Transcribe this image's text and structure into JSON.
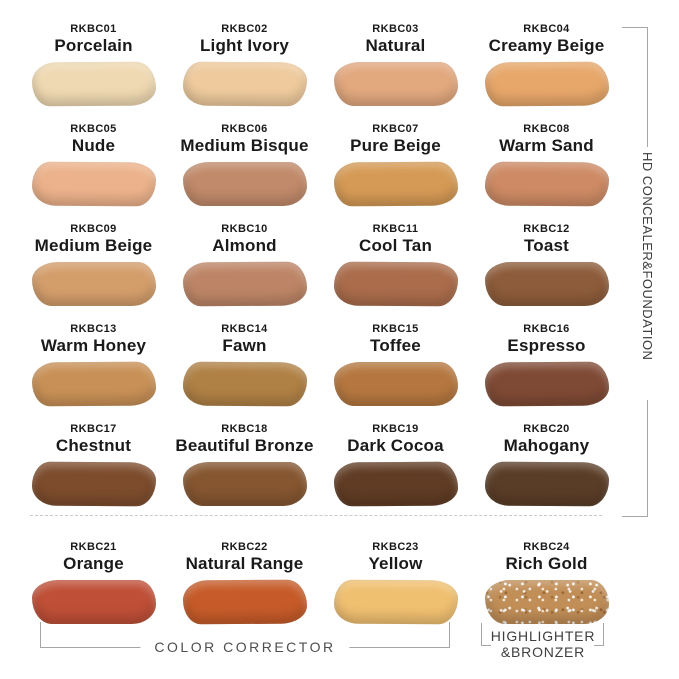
{
  "shades": [
    {
      "code": "RKBC01",
      "name": "Porcelain",
      "color": "#efd9b2"
    },
    {
      "code": "RKBC02",
      "name": "Light Ivory",
      "color": "#eeca9d"
    },
    {
      "code": "RKBC03",
      "name": "Natural",
      "color": "#e2a87e"
    },
    {
      "code": "RKBC04",
      "name": "Creamy Beige",
      "color": "#e7a76a"
    },
    {
      "code": "RKBC05",
      "name": "Nude",
      "color": "#ecb28b"
    },
    {
      "code": "RKBC06",
      "name": "Medium Bisque",
      "color": "#c18a6a"
    },
    {
      "code": "RKBC07",
      "name": "Pure Beige",
      "color": "#d59a55"
    },
    {
      "code": "RKBC08",
      "name": "Warm Sand",
      "color": "#cd8a64"
    },
    {
      "code": "RKBC09",
      "name": "Medium Beige",
      "color": "#d49e6b"
    },
    {
      "code": "RKBC10",
      "name": "Almond",
      "color": "#bd8566"
    },
    {
      "code": "RKBC11",
      "name": "Cool Tan",
      "color": "#aa6c4b"
    },
    {
      "code": "RKBC12",
      "name": "Toast",
      "color": "#8d5c3a"
    },
    {
      "code": "RKBC13",
      "name": "Warm Honey",
      "color": "#c89056"
    },
    {
      "code": "RKBC14",
      "name": "Fawn",
      "color": "#b08145"
    },
    {
      "code": "RKBC15",
      "name": "Toffee",
      "color": "#b5773f"
    },
    {
      "code": "RKBC16",
      "name": "Espresso",
      "color": "#7f4a35"
    },
    {
      "code": "RKBC17",
      "name": "Chestnut",
      "color": "#7d4c2d"
    },
    {
      "code": "RKBC18",
      "name": "Beautiful Bronze",
      "color": "#855630"
    },
    {
      "code": "RKBC19",
      "name": "Dark Cocoa",
      "color": "#603c24"
    },
    {
      "code": "RKBC20",
      "name": "Mahogany",
      "color": "#5a3d27"
    },
    {
      "code": "RKBC21",
      "name": "Orange",
      "color": "#bf4f37"
    },
    {
      "code": "RKBC22",
      "name": "Natural Range",
      "color": "#c65b29"
    },
    {
      "code": "RKBC23",
      "name": "Yellow",
      "color": "#f0c071"
    },
    {
      "code": "RKBC24",
      "name": "Rich Gold",
      "color": "#c18e57"
    }
  ],
  "groups": {
    "right_vertical_label": "HD CONCEALER&FOUNDATION",
    "color_corrector_label": "COLOR CORRECTOR",
    "highlighter_line1": "HIGHLIGHTER",
    "highlighter_line2": "&BRONZER"
  },
  "colors": {
    "bracket_line": "#a6a6a6",
    "divider_dashed": "#c9c9c9",
    "background": "#ffffff"
  }
}
